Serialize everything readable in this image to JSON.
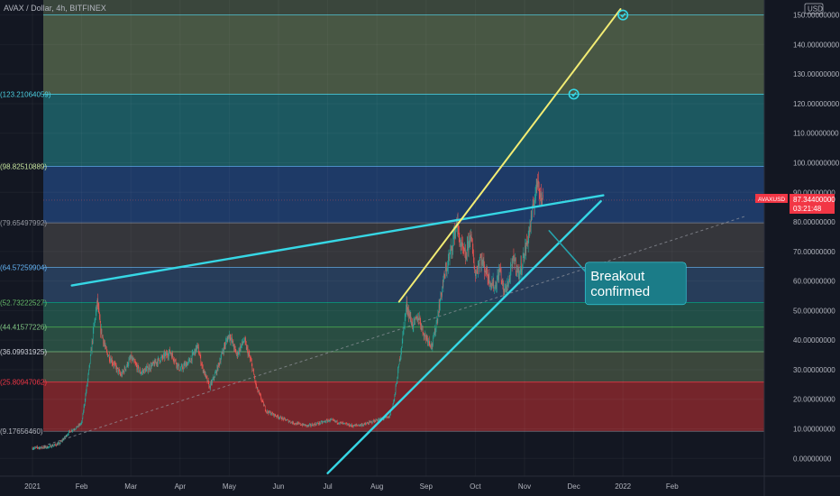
{
  "chart_data": {
    "type": "candlestick",
    "title": "AVAX / Dollar, 4h, BITFINEX",
    "currency": "USD",
    "ylim": [
      -4,
      155
    ],
    "y_ticks": [
      "0.00000000",
      "10.00000000",
      "20.00000000",
      "30.00000000",
      "40.00000000",
      "50.00000000",
      "60.00000000",
      "70.00000000",
      "80.00000000",
      "90.00000000",
      "100.00000000",
      "110.00000000",
      "120.00000000",
      "130.00000000",
      "140.00000000",
      "150.00000000"
    ],
    "x_ticks": [
      "2021",
      "Feb",
      "Mar",
      "Apr",
      "May",
      "Jun",
      "Jul",
      "Aug",
      "Sep",
      "Oct",
      "Nov",
      "Dec",
      "2022",
      "Feb"
    ],
    "last_price": {
      "symbol": "AVAXUSD",
      "price": "87.34400000",
      "countdown": "03:21:48",
      "value": 87.344
    },
    "fib_levels": [
      {
        "label": "9.17656460",
        "value": 9.1765646
      },
      {
        "label": "25.80947062",
        "value": 25.80947062
      },
      {
        "label": "36.09931925",
        "value": 36.09931925
      },
      {
        "label": "44.41577226",
        "value": 44.41577226
      },
      {
        "label": "52.73222527",
        "value": 52.73222527
      },
      {
        "label": "64.57259904",
        "value": 64.57259904
      },
      {
        "label": "79.65497992",
        "value": 79.65497992
      },
      {
        "label": "98.82510889",
        "value": 98.82510889
      },
      {
        "label": "123.21064059",
        "value": 123.21064059
      },
      {
        "label": "150",
        "value": 150.0
      }
    ],
    "price_path": [
      [
        0,
        3.5
      ],
      [
        0.3,
        3.8
      ],
      [
        0.55,
        5
      ],
      [
        0.75,
        9
      ],
      [
        0.9,
        10.5
      ],
      [
        1.0,
        12
      ],
      [
        1.05,
        18
      ],
      [
        1.15,
        30
      ],
      [
        1.25,
        45
      ],
      [
        1.32,
        53
      ],
      [
        1.38,
        44
      ],
      [
        1.5,
        36
      ],
      [
        1.65,
        32
      ],
      [
        1.8,
        28
      ],
      [
        2.0,
        34
      ],
      [
        2.2,
        29
      ],
      [
        2.4,
        31
      ],
      [
        2.55,
        33
      ],
      [
        2.8,
        36
      ],
      [
        3.0,
        30
      ],
      [
        3.2,
        33
      ],
      [
        3.35,
        38
      ],
      [
        3.45,
        31
      ],
      [
        3.6,
        24
      ],
      [
        3.75,
        30
      ],
      [
        3.9,
        38
      ],
      [
        4.0,
        42
      ],
      [
        4.15,
        35
      ],
      [
        4.3,
        40
      ],
      [
        4.45,
        32
      ],
      [
        4.55,
        24
      ],
      [
        4.75,
        16
      ],
      [
        5.0,
        14
      ],
      [
        5.3,
        12
      ],
      [
        5.6,
        11
      ],
      [
        5.85,
        12
      ],
      [
        6.05,
        13
      ],
      [
        6.25,
        12
      ],
      [
        6.5,
        11
      ],
      [
        6.75,
        11.5
      ],
      [
        7.0,
        13
      ],
      [
        7.25,
        14
      ],
      [
        7.35,
        20
      ],
      [
        7.5,
        38
      ],
      [
        7.6,
        52
      ],
      [
        7.72,
        45
      ],
      [
        7.85,
        48
      ],
      [
        7.95,
        42
      ],
      [
        8.05,
        40
      ],
      [
        8.12,
        38
      ],
      [
        8.2,
        45
      ],
      [
        8.35,
        60
      ],
      [
        8.5,
        70
      ],
      [
        8.62,
        80
      ],
      [
        8.7,
        72
      ],
      [
        8.8,
        68
      ],
      [
        8.9,
        76
      ],
      [
        9.0,
        62
      ],
      [
        9.1,
        68
      ],
      [
        9.2,
        64
      ],
      [
        9.3,
        60
      ],
      [
        9.4,
        58
      ],
      [
        9.5,
        64
      ],
      [
        9.58,
        56
      ],
      [
        9.68,
        60
      ],
      [
        9.78,
        68
      ],
      [
        9.88,
        62
      ],
      [
        9.95,
        66
      ],
      [
        10.05,
        73
      ],
      [
        10.15,
        82
      ],
      [
        10.22,
        90
      ],
      [
        10.28,
        95
      ],
      [
        10.33,
        88
      ],
      [
        10.38,
        87.3
      ]
    ],
    "trend_lines": [
      {
        "from": [
          0.8,
          58.5
        ],
        "to": [
          11.6,
          89
        ]
      },
      {
        "from": [
          6.0,
          -5
        ],
        "to": [
          11.55,
          87
        ]
      },
      {
        "from": [
          7.45,
          53
        ],
        "to": [
          11.95,
          152
        ]
      },
      {
        "from": [
          10.5,
          77
        ],
        "to": [
          11.3,
          62
        ]
      }
    ],
    "targets": [
      {
        "x": 11.0,
        "y": 123.21064059
      },
      {
        "x": 12.0,
        "y": 150
      }
    ],
    "trend_dashed": {
      "from": [
        0,
        3
      ],
      "to": [
        14.5,
        82
      ]
    },
    "annotations": [
      {
        "text_lines": [
          "Breakout",
          "confirmed"
        ],
        "x": 11.25,
        "y": 52
      }
    ]
  }
}
